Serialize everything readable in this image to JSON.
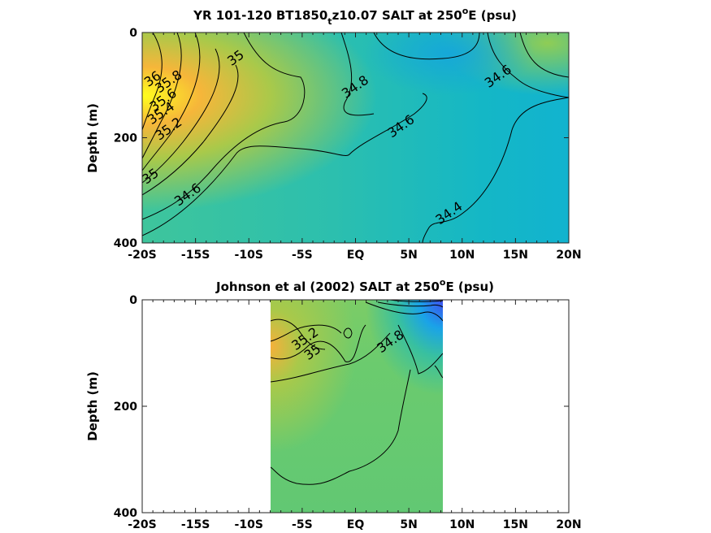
{
  "chart_data": [
    {
      "type": "heatmap",
      "title": "YR 101-120 BT1850",
      "title_subscript": "t",
      "title_rest": "z10.07 SALT at 250",
      "title_superscript": "o",
      "title_end": "E (psu)",
      "ylabel": "Depth (m)",
      "xlabel": "",
      "xlim": [
        -20,
        20
      ],
      "ylim": [
        400,
        0
      ],
      "y_reversed": true,
      "x_ticks": [
        -20,
        -15,
        -10,
        -5,
        0,
        5,
        10,
        15,
        20
      ],
      "x_tick_labels": [
        "-20S",
        "-15S",
        "-10S",
        "-5S",
        "EQ",
        "5N",
        "10N",
        "15N",
        "20N"
      ],
      "y_ticks": [
        0,
        200,
        400
      ],
      "y_tick_labels": [
        "0",
        "200",
        "400"
      ],
      "data_lat_range": [
        -20,
        20
      ],
      "contour_labels": [
        {
          "text": "36",
          "lat": -18.8,
          "depth": 95
        },
        {
          "text": "35.8",
          "lat": -17.3,
          "depth": 100
        },
        {
          "text": "35.6",
          "lat": -17.8,
          "depth": 135
        },
        {
          "text": "35.4",
          "lat": -18.0,
          "depth": 160
        },
        {
          "text": "35.2",
          "lat": -17.3,
          "depth": 190
        },
        {
          "text": "35",
          "lat": -11.0,
          "depth": 55
        },
        {
          "text": "35",
          "lat": -19.0,
          "depth": 280
        },
        {
          "text": "34.8",
          "lat": 0.2,
          "depth": 110
        },
        {
          "text": "34.6",
          "lat": 4.5,
          "depth": 185
        },
        {
          "text": "34.6",
          "lat": 13.6,
          "depth": 90
        },
        {
          "text": "34.6",
          "lat": -15.5,
          "depth": 315
        },
        {
          "text": "34.4",
          "lat": 9.0,
          "depth": 350
        }
      ]
    },
    {
      "type": "heatmap",
      "title": "Johnson et al (2002) SALT at 250",
      "title_superscript": "o",
      "title_end": "E (psu)",
      "ylabel": "Depth (m)",
      "xlabel": "",
      "xlim": [
        -20,
        20
      ],
      "ylim": [
        400,
        0
      ],
      "y_reversed": true,
      "x_ticks": [
        -20,
        -15,
        -10,
        -5,
        0,
        5,
        10,
        15,
        20
      ],
      "x_tick_labels": [
        "-20S",
        "-15S",
        "-10S",
        "-5S",
        "EQ",
        "5N",
        "10N",
        "15N",
        "20N"
      ],
      "y_ticks": [
        0,
        200,
        400
      ],
      "y_tick_labels": [
        "0",
        "200",
        "400"
      ],
      "data_lat_range": [
        -8,
        8.3
      ],
      "contour_labels": [
        {
          "text": "35.2",
          "lat": -4.5,
          "depth": 80
        },
        {
          "text": "35",
          "lat": -3.8,
          "depth": 105
        },
        {
          "text": "34.8",
          "lat": 3.5,
          "depth": 85
        }
      ]
    }
  ],
  "colormap": [
    "#3e4ef0",
    "#1aa3e8",
    "#13b8cc",
    "#3ec09a",
    "#6ccb6f",
    "#a9c94a",
    "#e8b13a",
    "#f9ea2e",
    "#ffff1e"
  ]
}
